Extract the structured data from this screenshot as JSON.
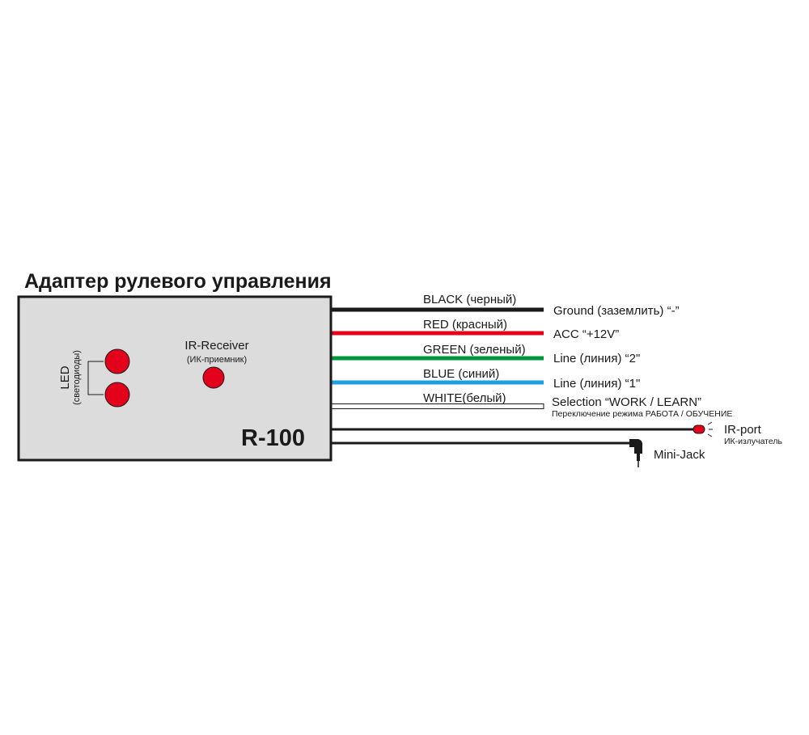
{
  "title": "Адаптер рулевого управления",
  "device": {
    "model": "R-100",
    "led_label": "LED",
    "led_sublabel": "(светодиоды)",
    "ir_receiver_label": "IR-Receiver",
    "ir_receiver_sublabel": "(ИК-приемник)",
    "body_color": "#dcdcdc",
    "led_color": "#e3001b"
  },
  "wires": [
    {
      "label": "BLACK (черный)",
      "function": "Ground (заземлить) “-”",
      "color": "#1a1a1a"
    },
    {
      "label": "RED (красный)",
      "function": "ACC “+12V”",
      "color": "#e3001b"
    },
    {
      "label": "GREEN (зеленый)",
      "function": "Line (линия) “2\"",
      "color": "#00963f"
    },
    {
      "label": "BLUE (синий)",
      "function": "Line (линия) “1\"",
      "color": "#1ea0e0"
    },
    {
      "label": "WHITE(белый)",
      "function": "Selection “WORK / LEARN”",
      "function_sub": "Переключение режима РАБОТА / ОБУЧЕНИЕ",
      "color": "#ffffff"
    }
  ],
  "ir_port": {
    "label": "IR-port",
    "sublabel": "ИК-излучатель"
  },
  "mini_jack": {
    "label": "Mini-Jack"
  }
}
